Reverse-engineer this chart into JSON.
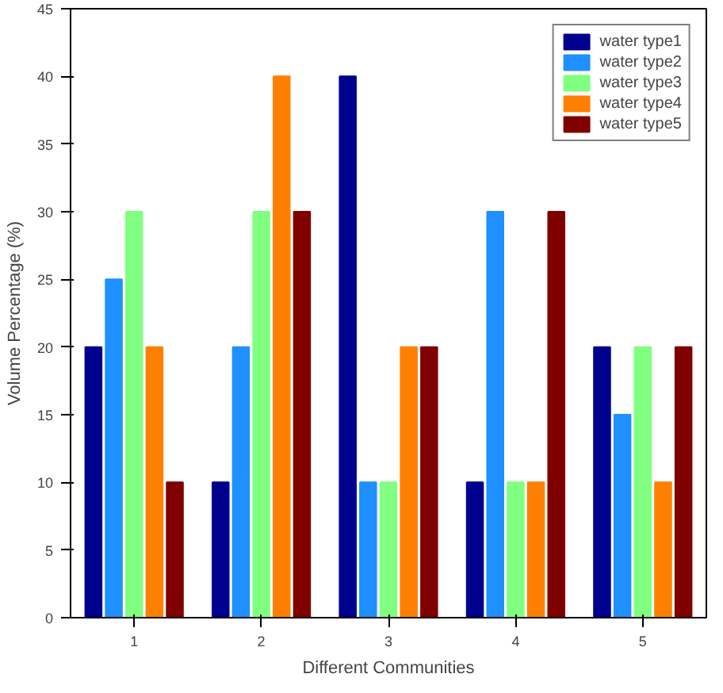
{
  "chart_data": {
    "type": "bar",
    "xlabel": "Different Communities",
    "ylabel": "Volume Percentage (%)",
    "categories": [
      "1",
      "2",
      "3",
      "4",
      "5"
    ],
    "series": [
      {
        "name": "water type1",
        "color": "#00008f",
        "values": [
          20,
          10,
          40,
          10,
          20
        ]
      },
      {
        "name": "water type2",
        "color": "#1e90ff",
        "values": [
          25,
          20,
          10,
          30,
          15
        ]
      },
      {
        "name": "water type3",
        "color": "#80ff80",
        "values": [
          30,
          30,
          10,
          10,
          20
        ]
      },
      {
        "name": "water type4",
        "color": "#ff8000",
        "values": [
          20,
          40,
          20,
          10,
          10
        ]
      },
      {
        "name": "water type5",
        "color": "#800000",
        "values": [
          10,
          30,
          20,
          30,
          20
        ]
      }
    ],
    "ylim": [
      0,
      45
    ],
    "yticks": [
      0,
      5,
      10,
      15,
      20,
      25,
      30,
      35,
      40,
      45
    ],
    "legend": "top right",
    "grid": false
  }
}
